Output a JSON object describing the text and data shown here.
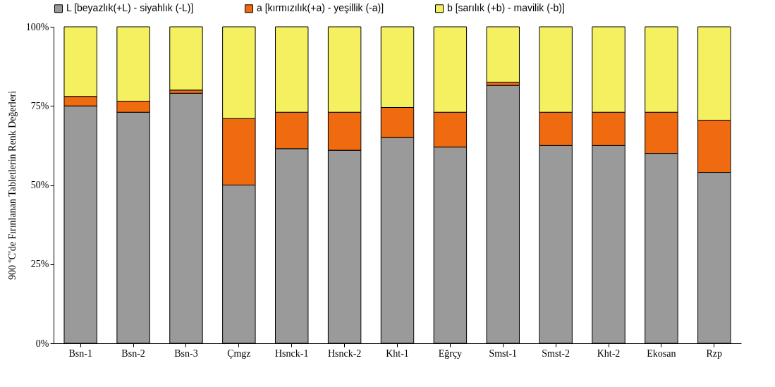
{
  "chart_data": {
    "type": "bar",
    "stacked": true,
    "ylabel": "900 ºC'de Fırınlanan Tabletlerin Renk Değerleri",
    "categories": [
      "Bsn-1",
      "Bsn-2",
      "Bsn-3",
      "Çmgz",
      "Hsnck-1",
      "Hsnck-2",
      "Kht-1",
      "Eğrçy",
      "Smst-1",
      "Smst-2",
      "Kht-2",
      "Ekosan",
      "Rzp"
    ],
    "series": [
      {
        "name": "L [beyazlık(+L) - siyahlık (-L)]",
        "color": "#9a9a9a",
        "values": [
          75,
          73,
          79,
          50,
          61.5,
          61,
          65,
          62,
          81.5,
          62.5,
          62.5,
          60,
          54
        ]
      },
      {
        "name": "a [kırmızılık(+a) - yeşillik (-a)]",
        "color": "#f06a10",
        "values": [
          3,
          3.5,
          1,
          21,
          11.5,
          12,
          9.5,
          11,
          1,
          10.5,
          10.5,
          13,
          16.5
        ]
      },
      {
        "name": "b [sarılık (+b) - mavilik (-b)]",
        "color": "#f4f060",
        "values": [
          22,
          23.5,
          20,
          29,
          27,
          27,
          25.5,
          27,
          17.5,
          27,
          27,
          27,
          29.5
        ]
      }
    ],
    "ylim": [
      0,
      100
    ],
    "yticks": [
      {
        "value": 0,
        "label": "0%"
      },
      {
        "value": 25,
        "label": "25%"
      },
      {
        "value": 50,
        "label": "50%"
      },
      {
        "value": 75,
        "label": "75%"
      },
      {
        "value": 100,
        "label": "100%"
      }
    ],
    "grid": false,
    "legend": "top"
  }
}
